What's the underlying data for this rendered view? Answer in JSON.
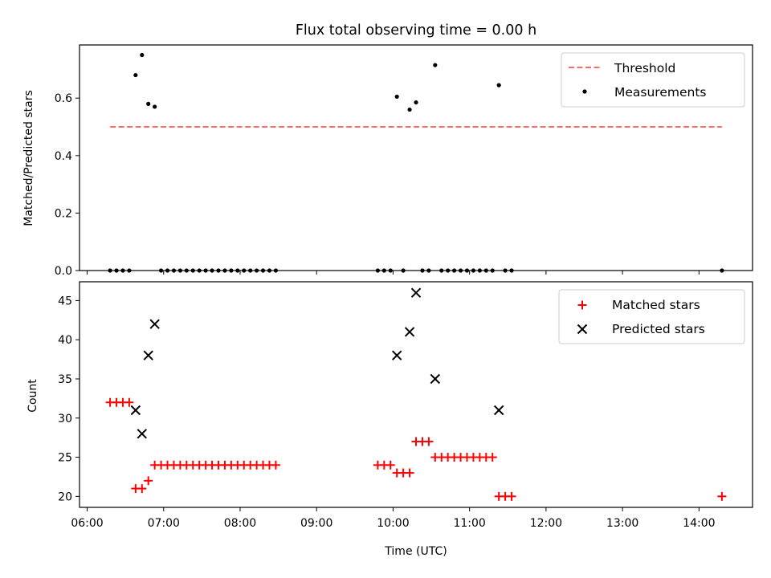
{
  "chart_data": [
    {
      "type": "scatter",
      "title": "Flux total observing time = 0.00 h",
      "xlabel": "",
      "ylabel": "Matched/Predicted stars",
      "xlim": [
        "05:54",
        "14:42"
      ],
      "ylim": [
        0,
        0.785
      ],
      "xticks": [
        "06:00",
        "07:00",
        "08:00",
        "09:00",
        "10:00",
        "11:00",
        "12:00",
        "13:00",
        "14:00"
      ],
      "yticks": [
        "0.0",
        "0.2",
        "0.4",
        "0.6"
      ],
      "legend_position": "top-right",
      "grid": false,
      "series": [
        {
          "name": "Threshold",
          "kind": "line",
          "style": "dashed",
          "color": "#ff6b6b",
          "points": [
            [
              "06:18",
              0.5
            ],
            [
              "14:18",
              0.5
            ]
          ]
        },
        {
          "name": "Measurements",
          "kind": "scatter",
          "marker": "dot",
          "color": "#000000",
          "points": [
            [
              "06:18",
              0
            ],
            [
              "06:23",
              0
            ],
            [
              "06:28",
              0
            ],
            [
              "06:33",
              0
            ],
            [
              "06:38",
              0.68
            ],
            [
              "06:43",
              0.75
            ],
            [
              "06:48",
              0.58
            ],
            [
              "06:53",
              0.57
            ],
            [
              "06:58",
              0
            ],
            [
              "07:03",
              0
            ],
            [
              "07:08",
              0
            ],
            [
              "07:13",
              0
            ],
            [
              "07:18",
              0
            ],
            [
              "07:23",
              0
            ],
            [
              "07:28",
              0
            ],
            [
              "07:33",
              0
            ],
            [
              "07:38",
              0
            ],
            [
              "07:43",
              0
            ],
            [
              "07:48",
              0
            ],
            [
              "07:53",
              0
            ],
            [
              "07:58",
              0
            ],
            [
              "08:03",
              0
            ],
            [
              "08:08",
              0
            ],
            [
              "08:13",
              0
            ],
            [
              "08:18",
              0
            ],
            [
              "08:23",
              0
            ],
            [
              "08:28",
              0
            ],
            [
              "09:48",
              0
            ],
            [
              "09:53",
              0
            ],
            [
              "09:58",
              0
            ],
            [
              "10:03",
              0.605
            ],
            [
              "10:08",
              0
            ],
            [
              "10:13",
              0.56
            ],
            [
              "10:18",
              0.585
            ],
            [
              "10:23",
              0
            ],
            [
              "10:28",
              0
            ],
            [
              "10:33",
              0.715
            ],
            [
              "10:38",
              0
            ],
            [
              "10:43",
              0
            ],
            [
              "10:48",
              0
            ],
            [
              "10:53",
              0
            ],
            [
              "10:58",
              0
            ],
            [
              "11:03",
              0
            ],
            [
              "11:08",
              0
            ],
            [
              "11:13",
              0
            ],
            [
              "11:18",
              0
            ],
            [
              "11:23",
              0.645
            ],
            [
              "11:28",
              0
            ],
            [
              "11:33",
              0
            ],
            [
              "14:18",
              0
            ]
          ]
        }
      ]
    },
    {
      "type": "scatter",
      "title": "",
      "xlabel": "Time (UTC)",
      "ylabel": "Count",
      "xlim": [
        "05:54",
        "14:42"
      ],
      "ylim": [
        18.6,
        47.4
      ],
      "xticks": [
        "06:00",
        "07:00",
        "08:00",
        "09:00",
        "10:00",
        "11:00",
        "12:00",
        "13:00",
        "14:00"
      ],
      "yticks": [
        "20",
        "25",
        "30",
        "35",
        "40",
        "45"
      ],
      "legend_position": "top-right",
      "grid": false,
      "series": [
        {
          "name": "Matched stars",
          "kind": "scatter",
          "marker": "plus",
          "color": "#ff0000",
          "points": [
            [
              "06:18",
              32
            ],
            [
              "06:23",
              32
            ],
            [
              "06:28",
              32
            ],
            [
              "06:33",
              32
            ],
            [
              "06:38",
              21
            ],
            [
              "06:43",
              21
            ],
            [
              "06:48",
              22
            ],
            [
              "06:53",
              24
            ],
            [
              "06:58",
              24
            ],
            [
              "07:03",
              24
            ],
            [
              "07:08",
              24
            ],
            [
              "07:13",
              24
            ],
            [
              "07:18",
              24
            ],
            [
              "07:23",
              24
            ],
            [
              "07:28",
              24
            ],
            [
              "07:33",
              24
            ],
            [
              "07:38",
              24
            ],
            [
              "07:43",
              24
            ],
            [
              "07:48",
              24
            ],
            [
              "07:53",
              24
            ],
            [
              "07:58",
              24
            ],
            [
              "08:03",
              24
            ],
            [
              "08:08",
              24
            ],
            [
              "08:13",
              24
            ],
            [
              "08:18",
              24
            ],
            [
              "08:23",
              24
            ],
            [
              "08:28",
              24
            ],
            [
              "09:48",
              24
            ],
            [
              "09:53",
              24
            ],
            [
              "09:58",
              24
            ],
            [
              "10:03",
              23
            ],
            [
              "10:08",
              23
            ],
            [
              "10:13",
              23
            ],
            [
              "10:18",
              27
            ],
            [
              "10:23",
              27
            ],
            [
              "10:28",
              27
            ],
            [
              "10:33",
              25
            ],
            [
              "10:38",
              25
            ],
            [
              "10:43",
              25
            ],
            [
              "10:48",
              25
            ],
            [
              "10:53",
              25
            ],
            [
              "10:58",
              25
            ],
            [
              "11:03",
              25
            ],
            [
              "11:08",
              25
            ],
            [
              "11:13",
              25
            ],
            [
              "11:18",
              25
            ],
            [
              "11:23",
              20
            ],
            [
              "11:28",
              20
            ],
            [
              "11:33",
              20
            ],
            [
              "14:18",
              20
            ]
          ]
        },
        {
          "name": "Predicted stars",
          "kind": "scatter",
          "marker": "x",
          "color": "#000000",
          "points": [
            [
              "06:38",
              31
            ],
            [
              "06:43",
              28
            ],
            [
              "06:48",
              38
            ],
            [
              "06:53",
              42
            ],
            [
              "10:03",
              38
            ],
            [
              "10:13",
              41
            ],
            [
              "10:18",
              46
            ],
            [
              "10:33",
              35
            ],
            [
              "11:23",
              31
            ]
          ]
        }
      ]
    }
  ]
}
